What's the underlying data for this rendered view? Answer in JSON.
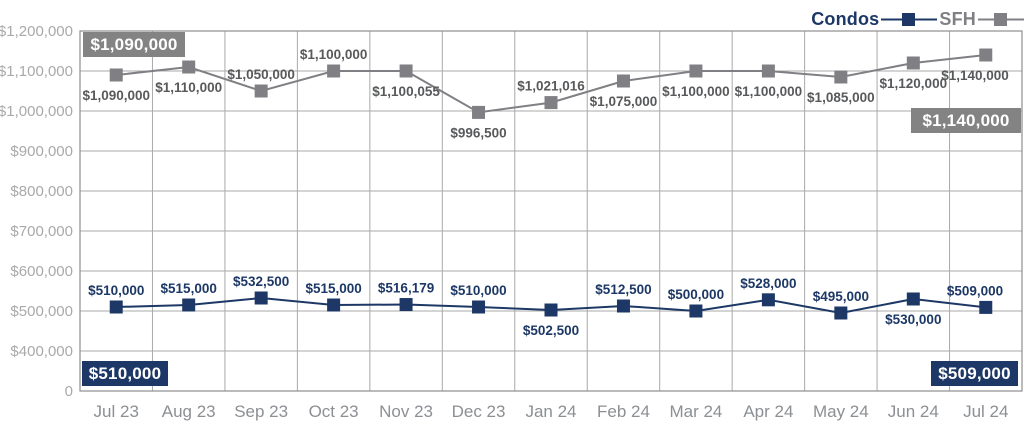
{
  "chart_data": {
    "type": "line",
    "title": "",
    "xlabel": "",
    "ylabel": "",
    "grid": true,
    "legend_position": "top-right",
    "categories": [
      "Jul 23",
      "Aug 23",
      "Sep 23",
      "Oct 23",
      "Nov 23",
      "Dec 23",
      "Jan 24",
      "Feb 24",
      "Mar 24",
      "Apr 24",
      "May 24",
      "Jun 24",
      "Jul 24"
    ],
    "y_ticks": [
      {
        "label": "$1,200,000",
        "value": 1200000
      },
      {
        "label": "$1,100,000",
        "value": 1100000
      },
      {
        "label": "$1,000,000",
        "value": 1000000
      },
      {
        "label": "$900,000",
        "value": 900000
      },
      {
        "label": "$800,000",
        "value": 800000
      },
      {
        "label": "$700,000",
        "value": 700000
      },
      {
        "label": "$600,000",
        "value": 600000
      },
      {
        "label": "$500,000",
        "value": 500000
      },
      {
        "label": "$400,000",
        "value": 400000
      },
      {
        "label": "0",
        "value": 0
      }
    ],
    "ylim": [
      0,
      1200000
    ],
    "axis_break_below": 400000,
    "series": [
      {
        "name": "SFH",
        "color": "#808084",
        "label_color": "#58595b",
        "values": [
          1090000,
          1110000,
          1050000,
          1100000,
          1100055,
          996500,
          1021016,
          1075000,
          1100000,
          1100000,
          1085000,
          1120000,
          1140000
        ],
        "labels": [
          "$1,090,000",
          "$1,110,000",
          "$1,050,000",
          "$1,100,000",
          "$1,100,055",
          "$996,500",
          "$1,021,016",
          "$1,075,000",
          "$1,100,000",
          "$1,100,000",
          "$1,085,000",
          "$1,120,000",
          "$1,140,000"
        ],
        "label_side": [
          "below",
          "below",
          "above",
          "above",
          "below",
          "below",
          "above",
          "below",
          "below",
          "below",
          "below",
          "below",
          "below"
        ]
      },
      {
        "name": "Condos",
        "color": "#1d3866",
        "label_color": "#1d3866",
        "values": [
          510000,
          515000,
          532500,
          515000,
          516179,
          510000,
          502500,
          512500,
          500000,
          528000,
          495000,
          530000,
          509000
        ],
        "labels": [
          "$510,000",
          "$515,000",
          "$532,500",
          "$515,000",
          "$516,179",
          "$510,000",
          "$502,500",
          "$512,500",
          "$500,000",
          "$528,000",
          "$495,000",
          "$530,000",
          "$509,000"
        ],
        "label_side": [
          "above",
          "above",
          "above",
          "above",
          "above",
          "above",
          "below",
          "above",
          "above",
          "above",
          "above",
          "below",
          "above"
        ]
      }
    ],
    "callouts": {
      "sfh_first": "$1,090,000",
      "sfh_last": "$1,140,000",
      "condos_first": "$510,000",
      "condos_last": "$509,000"
    }
  },
  "legend": {
    "condos_label": "Condos",
    "sfh_label": "SFH"
  },
  "colors": {
    "navy": "#1d3866",
    "gray": "#808084",
    "grid": "#a9a9a9",
    "border": "#8e8e8e",
    "y_axis_text": "#a9a9a9",
    "x_axis_text": "#8c8f93",
    "badge_gray": "#838383",
    "badge_text": "#ffffff"
  }
}
